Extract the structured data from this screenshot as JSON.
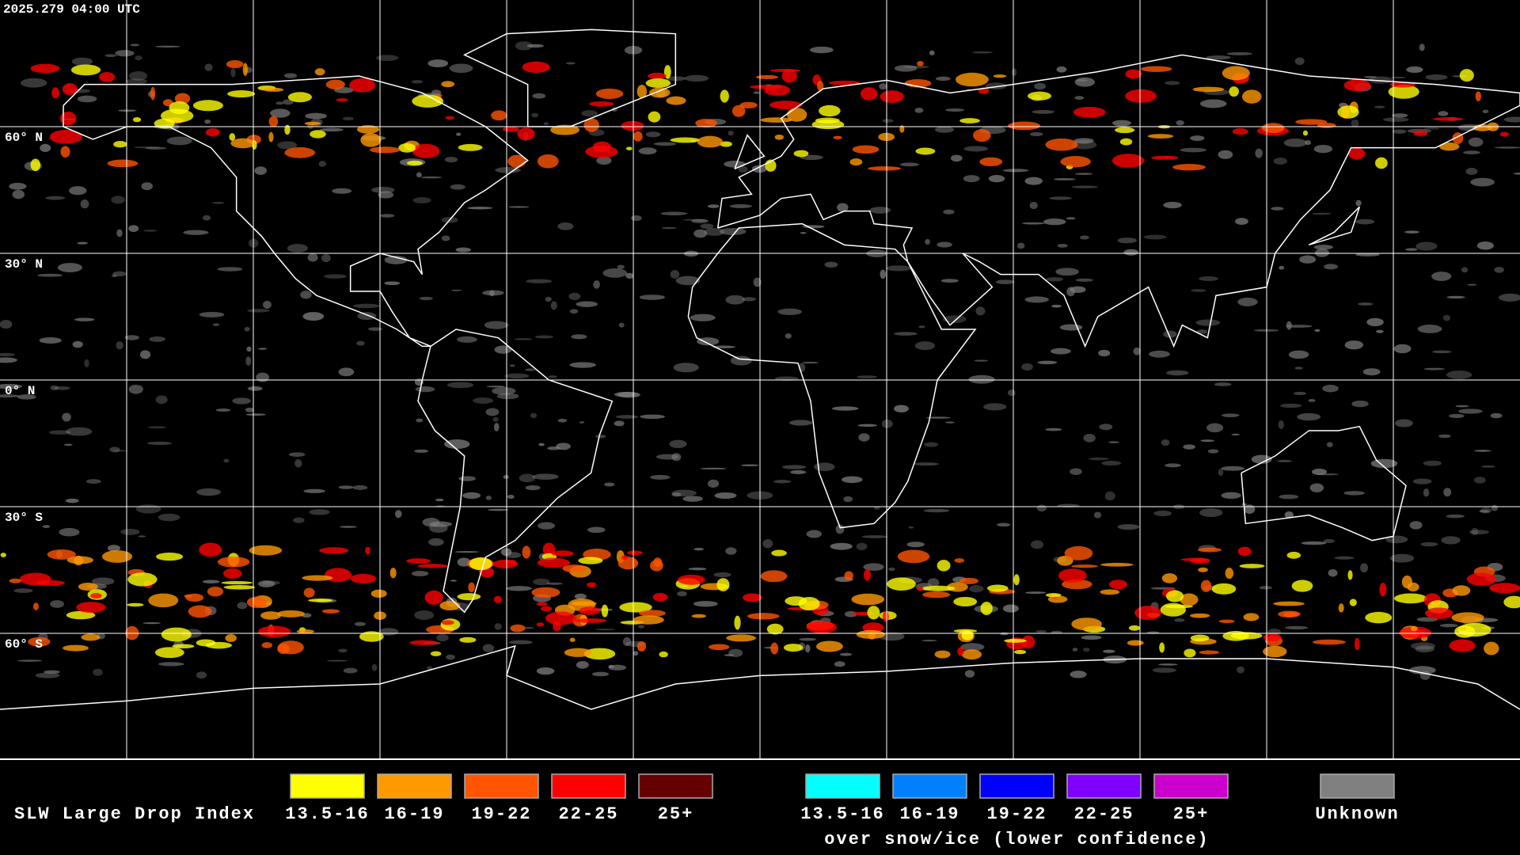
{
  "header": {
    "timestamp": "2025.279 04:00 UTC"
  },
  "map": {
    "latitude_labels": [
      "60° N",
      "30° N",
      "0° N",
      "30° S",
      "60° S"
    ]
  },
  "legend": {
    "title": "SLW Large Drop Index",
    "groups": [
      {
        "items": [
          {
            "label": "13.5-16",
            "color": "#ffff00"
          },
          {
            "label": "16-19",
            "color": "#ff9900"
          },
          {
            "label": "19-22",
            "color": "#ff5500"
          },
          {
            "label": "22-25",
            "color": "#ff0000"
          },
          {
            "label": "25+",
            "color": "#660000"
          }
        ]
      },
      {
        "items": [
          {
            "label": "13.5-16",
            "color": "#00ffff"
          },
          {
            "label": "16-19",
            "color": "#0080ff"
          },
          {
            "label": "19-22",
            "color": "#0000ff"
          },
          {
            "label": "22-25",
            "color": "#8000ff"
          },
          {
            "label": "25+",
            "color": "#cc00cc"
          }
        ],
        "caption": "over snow/ice (lower confidence)"
      },
      {
        "items": [
          {
            "label": "Unknown",
            "color": "#808080"
          }
        ]
      }
    ]
  }
}
